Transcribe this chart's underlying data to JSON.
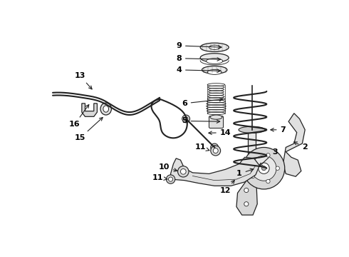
{
  "background_color": "#ffffff",
  "line_color": "#222222",
  "label_color": "#000000",
  "fig_width": 4.9,
  "fig_height": 3.6,
  "dpi": 100
}
